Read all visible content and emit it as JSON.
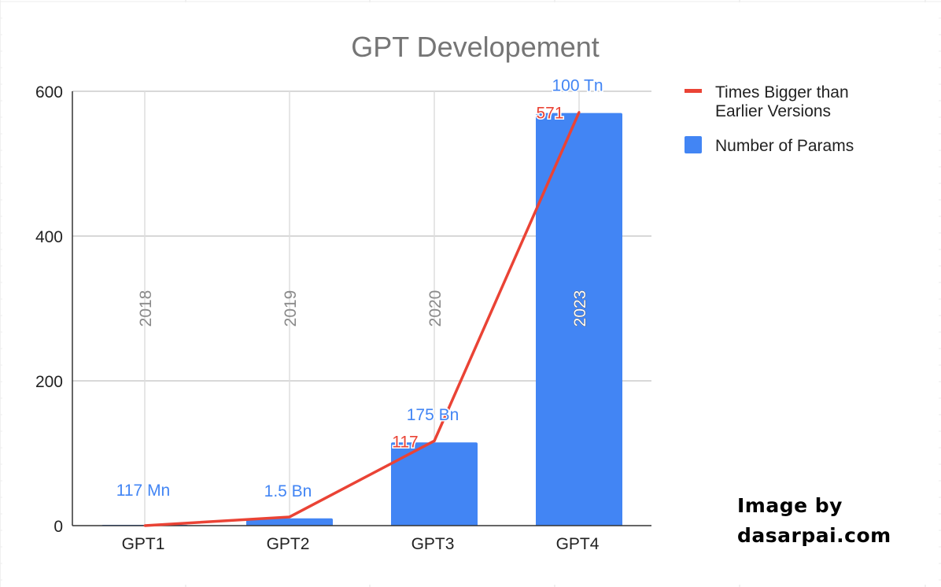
{
  "chart_data": {
    "type": "bar",
    "title": "GPT Developement",
    "categories": [
      "GPT1",
      "GPT2",
      "GPT3",
      "GPT4"
    ],
    "years": [
      "2018",
      "2019",
      "2020",
      "2023"
    ],
    "ylim": [
      0,
      600
    ],
    "yticks": [
      "0",
      "200",
      "400",
      "600"
    ],
    "grid": true,
    "legend_position": "right",
    "series": [
      {
        "name": "Number of Params",
        "type": "bar",
        "color": "#4285f4",
        "values": [
          0.117,
          10,
          115,
          570
        ],
        "labels": [
          "117 Mn",
          "1.5 Bn",
          "175 Bn",
          "100 Tn"
        ]
      },
      {
        "name": "Times Bigger than Earlier Versions",
        "type": "line",
        "color": "#ea4335",
        "values": [
          0,
          12,
          117,
          571
        ],
        "labels": [
          "",
          "",
          "117",
          "571"
        ]
      }
    ]
  },
  "legend": {
    "line_label_1": "Times Bigger than",
    "line_label_2": "Earlier Versions",
    "bar_label": "Number of Params"
  },
  "watermark": {
    "line1": "Image by",
    "line2": "dasarpai.com"
  }
}
